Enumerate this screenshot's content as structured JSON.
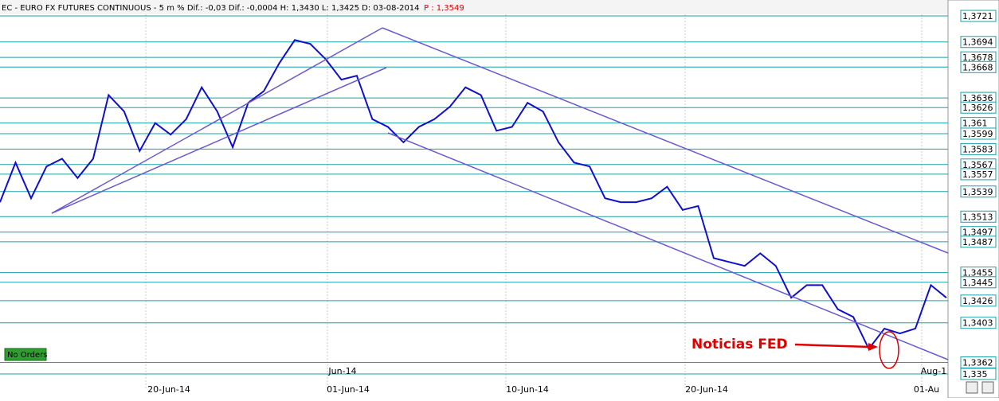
{
  "header": {
    "title": "EC - EURO FX FUTURES CONTINUOUS - 5 m % Dif.: -0,03 Dif.: -0,0004 H: 1,3430 L: 1,3425 D: 03-08-2014",
    "price": "P : 1,3549"
  },
  "chart_data": {
    "type": "line",
    "ylim": [
      1.335,
      1.3721
    ],
    "levels": [
      {
        "value": 1.3721,
        "label": "1,3721"
      },
      {
        "value": 1.3694,
        "label": "1,3694"
      },
      {
        "value": 1.3678,
        "label": "1,3678"
      },
      {
        "value": 1.3668,
        "label": "1,3668"
      },
      {
        "value": 1.3636,
        "label": "1,3636"
      },
      {
        "value": 1.3626,
        "label": "1,3626"
      },
      {
        "value": 1.361,
        "label": "1,361"
      },
      {
        "value": 1.3599,
        "label": "1,3599"
      },
      {
        "value": 1.3583,
        "label": "1,3583"
      },
      {
        "value": 1.3567,
        "label": "1,3567"
      },
      {
        "value": 1.3557,
        "label": "1,3557"
      },
      {
        "value": 1.3539,
        "label": "1,3539"
      },
      {
        "value": 1.3513,
        "label": "1,3513"
      },
      {
        "value": 1.3497,
        "label": "1,3497"
      },
      {
        "value": 1.3487,
        "label": "1,3487"
      },
      {
        "value": 1.3455,
        "label": "1,3455"
      },
      {
        "value": 1.3445,
        "label": "1,3445"
      },
      {
        "value": 1.3426,
        "label": "1,3426"
      },
      {
        "value": 1.3403,
        "label": "1,3403"
      },
      {
        "value": 1.3362,
        "label": "1,3362"
      },
      {
        "value": 1.335,
        "label": "1,335"
      }
    ],
    "series": [
      {
        "color": "#1010c8",
        "values": [
          1.3528,
          1.3569,
          1.3532,
          1.3565,
          1.3573,
          1.3553,
          1.3573,
          1.3639,
          1.3622,
          1.3581,
          1.361,
          1.3598,
          1.3614,
          1.3647,
          1.3622,
          1.3585,
          1.3631,
          1.3643,
          1.3672,
          1.3696,
          1.3692,
          1.3676,
          1.3655,
          1.3659,
          1.3614,
          1.3606,
          1.359,
          1.3606,
          1.3614,
          1.3627,
          1.3647,
          1.3639,
          1.3602,
          1.3606,
          1.3631,
          1.3622,
          1.359,
          1.3569,
          1.3565,
          1.3532,
          1.3528,
          1.3528,
          1.3532,
          1.3544,
          1.352,
          1.3524,
          1.347,
          1.3466,
          1.3462,
          1.3475,
          1.3462,
          1.3429,
          1.3442,
          1.3442,
          1.3417,
          1.3409,
          1.3376,
          1.3397,
          1.3392,
          1.3397,
          1.3442,
          1.3429
        ]
      }
    ],
    "x_labels": [
      "20-Jun-14",
      "01-Jun-14",
      "10-Jun-14",
      "20-Jun-14",
      "01-Au"
    ],
    "period_labels": [
      "Jun-14",
      "Aug-1"
    ],
    "annotation": "Noticias FED",
    "badge": "No Orders"
  }
}
